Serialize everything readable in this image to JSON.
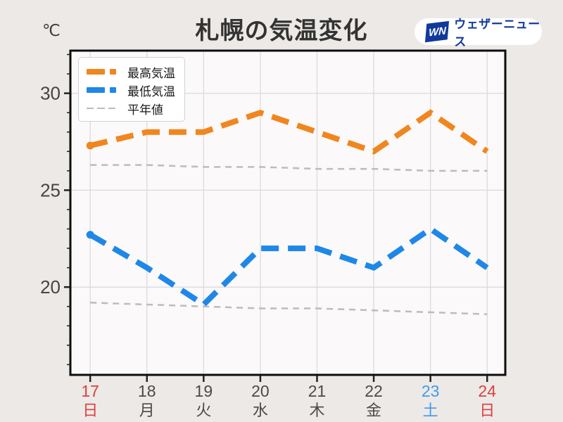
{
  "header": {
    "title": "札幌の気温変化",
    "unit_label": "℃",
    "logo": {
      "monogram": "WN",
      "brand": "ウェザーニュース"
    }
  },
  "legend": {
    "items": [
      {
        "label": "最高気温",
        "color": "#f0861f",
        "style": "thick-dash"
      },
      {
        "label": "最低気温",
        "color": "#1f87e8",
        "style": "thick-dash"
      },
      {
        "label": "平年値",
        "color": "#bcbcbc",
        "style": "thin-dash"
      }
    ]
  },
  "chart_data": {
    "type": "line",
    "title": "札幌の気温変化",
    "y_unit": "℃",
    "x_days": [
      17,
      18,
      19,
      20,
      21,
      22,
      23,
      24
    ],
    "x_labels_date": [
      "17",
      "18",
      "19",
      "20",
      "21",
      "22",
      "23",
      "24"
    ],
    "x_labels_weekday": [
      "日",
      "月",
      "火",
      "水",
      "木",
      "金",
      "土",
      "日"
    ],
    "x_label_colors": [
      "red",
      "default",
      "default",
      "default",
      "default",
      "default",
      "blue",
      "red"
    ],
    "y_ticks": [
      20,
      25,
      30
    ],
    "y_minor_tick_step": 1,
    "ylim": [
      15.47,
      32.2
    ],
    "xlim": [
      16.65,
      24.32
    ],
    "grid": true,
    "legend_position": "upper-left",
    "series": [
      {
        "name": "最高気温",
        "color": "#f0861f",
        "width": 8,
        "dash": "25 13",
        "start_dot": true,
        "values": [
          27.3,
          28,
          28,
          29,
          28,
          27,
          29,
          27
        ]
      },
      {
        "name": "最低気温",
        "color": "#1f87e8",
        "width": 8,
        "dash": "25 13",
        "start_dot": true,
        "values": [
          22.7,
          21,
          19.1,
          22,
          22,
          21,
          23,
          21
        ]
      },
      {
        "name": "平年値(最高)",
        "color": "#bcbcbc",
        "width": 2.5,
        "dash": "9 7",
        "start_dot": false,
        "values": [
          26.3,
          26.3,
          26.2,
          26.2,
          26.1,
          26.1,
          26.0,
          26.0
        ]
      },
      {
        "name": "平年値(最低)",
        "color": "#bcbcbc",
        "width": 2.5,
        "dash": "9 7",
        "start_dot": false,
        "values": [
          19.2,
          19.1,
          19.0,
          18.9,
          18.9,
          18.8,
          18.7,
          18.6
        ]
      }
    ],
    "axis_label_colors": {
      "red": "#d94141",
      "blue": "#3f9ceb",
      "default": "#4a4a4a"
    }
  }
}
